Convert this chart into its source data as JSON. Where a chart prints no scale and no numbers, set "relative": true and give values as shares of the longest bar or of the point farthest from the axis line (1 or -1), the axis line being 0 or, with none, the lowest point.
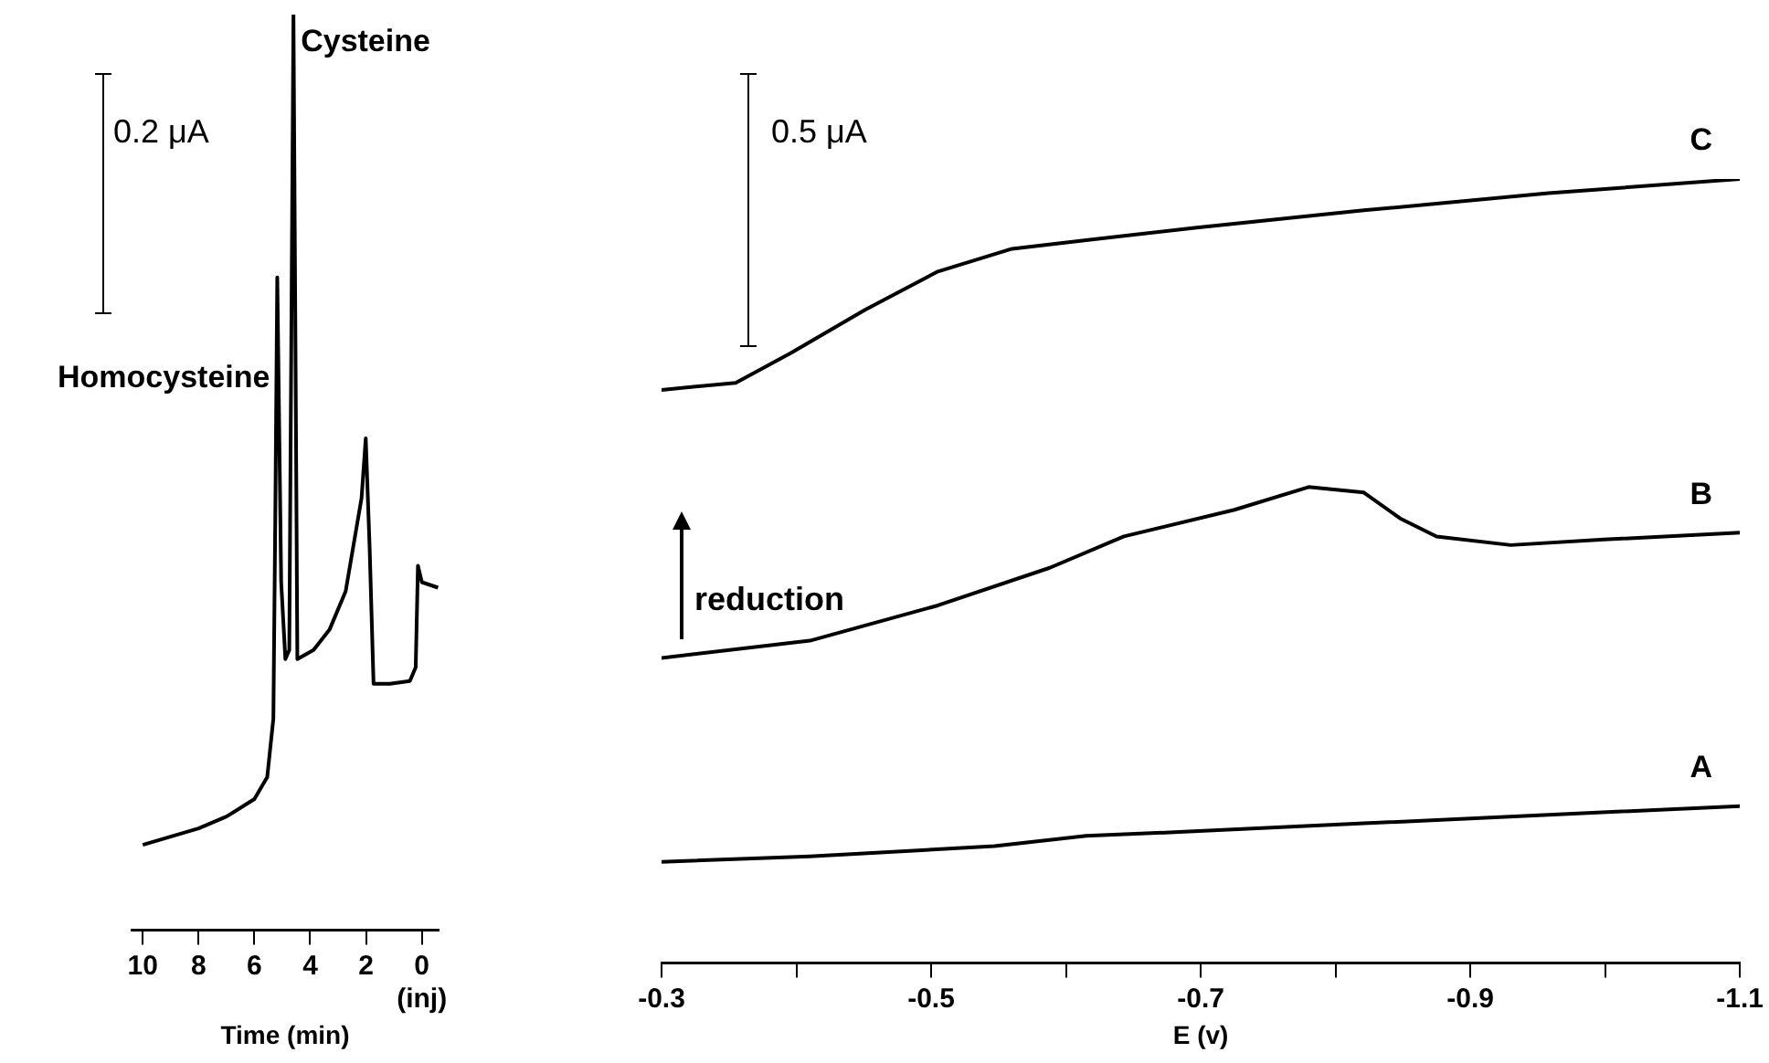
{
  "chart_data": [
    {
      "type": "line",
      "relative": true,
      "xlabel": "Time (min)",
      "xlim": [
        10.4,
        -0.6
      ],
      "xticks": [
        10,
        8,
        6,
        4,
        2,
        {
          "value": 0,
          "label": "0\n(inj)"
        }
      ],
      "grid": false,
      "legend": false,
      "marker": "none",
      "tick_labels": "x",
      "annotations": [
        "0.2 μA",
        {
          "text": "Homocysteine",
          "x": 5.18,
          "y": 0.713
        },
        {
          "text": "Cysteine",
          "x": 4.6,
          "y": 1.0
        }
      ],
      "series": [
        {
          "color": "#000000",
          "x": [
            10,
            9,
            8,
            7,
            6,
            5.54,
            5.32,
            5.25,
            5.18,
            5.04,
            4.89,
            4.75,
            4.6,
            4.46,
            3.88,
            3.31,
            2.73,
            2.16,
            2.01,
            1.87,
            1.73,
            1.15,
            0.43,
            0.22,
            0.14,
            0,
            -0.58
          ],
          "values": [
            0.093,
            0.102,
            0.111,
            0.124,
            0.143,
            0.167,
            0.231,
            0.454,
            0.713,
            0.38,
            0.296,
            0.306,
            1.0,
            0.296,
            0.306,
            0.328,
            0.37,
            0.472,
            0.537,
            0.417,
            0.269,
            0.269,
            0.272,
            0.287,
            0.398,
            0.38,
            0.374
          ]
        }
      ]
    },
    {
      "type": "line",
      "relative": true,
      "xlabel": "E (v)",
      "xlim": [
        -0.3,
        -1.1
      ],
      "xticks": [
        -0.3,
        {
          "value": -0.4,
          "label": null
        },
        -0.5,
        {
          "value": -0.6,
          "label": null
        },
        -0.7,
        {
          "value": -0.8,
          "label": null
        },
        -0.9,
        {
          "value": -1.0,
          "label": null
        },
        -1.1
      ],
      "grid": false,
      "legend": false,
      "marker": "none",
      "tick_labels": "x",
      "annotations": [
        "0.5 μA",
        "reduction"
      ],
      "series": [
        {
          "name": "C",
          "color": "#000000",
          "x": [
            -0.3,
            -0.355,
            -0.396,
            -0.451,
            -0.505,
            -0.56,
            -0.615,
            -0.697,
            -0.821,
            -0.958,
            -1.1
          ],
          "values": [
            0.731,
            0.74,
            0.778,
            0.833,
            0.882,
            0.911,
            0.922,
            0.938,
            0.96,
            0.982,
            1.0
          ]
        },
        {
          "name": "B",
          "color": "#000000",
          "x": [
            -0.3,
            -0.41,
            -0.505,
            -0.588,
            -0.643,
            -0.725,
            -0.78,
            -0.821,
            -0.848,
            -0.875,
            -0.93,
            -0.999,
            -1.1
          ],
          "values": [
            0.389,
            0.411,
            0.456,
            0.504,
            0.544,
            0.578,
            0.607,
            0.6,
            0.567,
            0.544,
            0.533,
            0.54,
            0.549
          ]
        },
        {
          "name": "A",
          "color": "#000000",
          "x": [
            -0.3,
            -0.41,
            -0.547,
            -0.615,
            -0.684,
            -0.821,
            -0.958,
            -1.1
          ],
          "values": [
            0.129,
            0.136,
            0.149,
            0.162,
            0.167,
            0.178,
            0.189,
            0.2
          ]
        }
      ]
    }
  ]
}
